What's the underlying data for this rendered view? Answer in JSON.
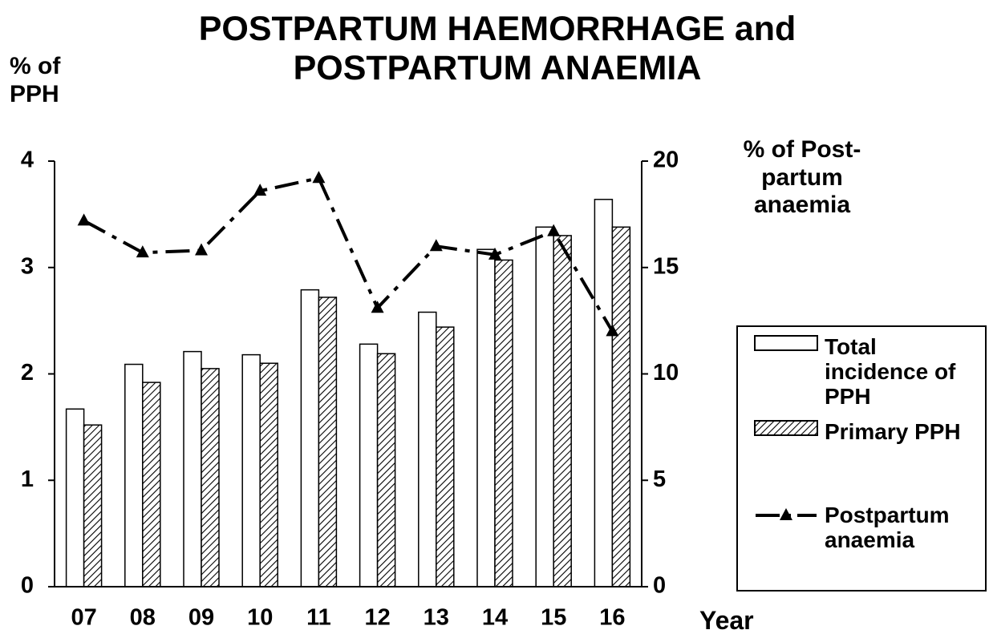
{
  "chart_data": {
    "type": "bar",
    "title": "POSTPARTUM HAEMORRHAGE and POSTPARTUM ANAEMIA",
    "ylabel": "% of PPH",
    "y2label": "% of Post-partum anaemia",
    "xlabel": "Year",
    "categories": [
      "07",
      "08",
      "09",
      "10",
      "11",
      "12",
      "13",
      "14",
      "15",
      "16"
    ],
    "series": [
      {
        "name": "Total incidence of PPH",
        "type": "bar",
        "color": "#ffffff",
        "values": [
          1.67,
          2.09,
          2.21,
          2.18,
          2.79,
          2.28,
          2.58,
          3.17,
          3.38,
          3.64
        ]
      },
      {
        "name": "Primary PPH",
        "type": "bar",
        "color": "#d9d9d9",
        "hatch": true,
        "values": [
          1.52,
          1.92,
          2.05,
          2.1,
          2.72,
          2.19,
          2.44,
          3.07,
          3.3,
          3.38
        ]
      },
      {
        "name": "Postpartum anaemia",
        "type": "line",
        "axis": "y2",
        "color": "#000000",
        "values": [
          17.2,
          15.7,
          15.8,
          18.6,
          19.2,
          13.1,
          16.0,
          15.6,
          16.7,
          12.0
        ]
      }
    ],
    "ylim": [
      0,
      4
    ],
    "yticks": [
      0,
      1,
      2,
      3,
      4
    ],
    "y2lim": [
      0,
      20
    ],
    "y2ticks": [
      0,
      5,
      10,
      15,
      20
    ]
  }
}
